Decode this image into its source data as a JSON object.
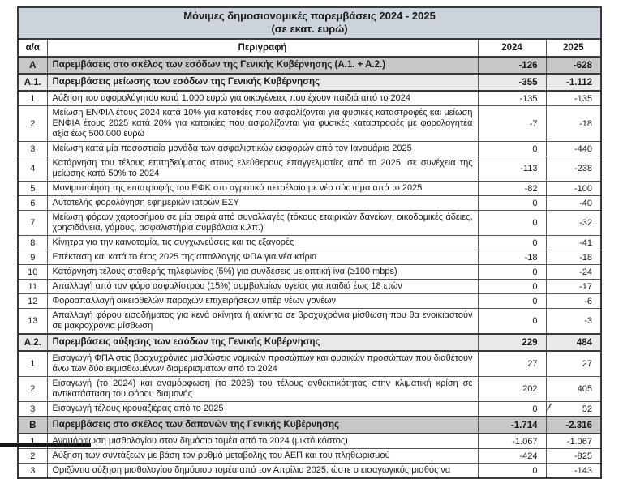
{
  "title": {
    "line1": "Μόνιμες δημοσιονομικές παρεμβάσεις 2024 - 2025",
    "line2": "(σε εκατ. ευρώ)"
  },
  "header": {
    "num": "α/α",
    "desc": "Περιγραφή",
    "col2024": "2024",
    "col2025": "2025"
  },
  "rows": [
    {
      "id": "Α",
      "desc": "Παρεμβάσεις στο σκέλος των εσόδων της Γενικής Κυβέρνησης (Α.1. + Α.2.)",
      "v2024": "-126",
      "v2025": "-628"
    },
    {
      "id": "Α.1.",
      "desc": "Παρεμβάσεις μείωσης των εσόδων της Γενικής Κυβέρνησης",
      "v2024": "-355",
      "v2025": "-1.112"
    },
    {
      "id": "1",
      "desc": "Αύξηση του αφορολόγητου κατά 1.000 ευρώ για οικογένειες που έχουν παιδιά από το 2024",
      "v2024": "-135",
      "v2025": "-135"
    },
    {
      "id": "2",
      "desc": "Μείωση ΕΝΦΙΑ έτους 2024 κατά 10% για κατοικίες που ασφαλίζονται για φυσικές καταστροφές και μείωση ΕΝΦΙΑ έτους 2025 κατά 20% για κατοικίες που ασφαλίζονται για φυσικές καταστροφές με φορολογητέα αξία έως 500.000 ευρώ",
      "v2024": "-7",
      "v2025": "-18"
    },
    {
      "id": "3",
      "desc": "Μείωση κατά μία ποσοστιαία μονάδα των ασφαλιστικών εισφορών από τον Ιανουάριο 2025",
      "v2024": "0",
      "v2025": "-440"
    },
    {
      "id": "4",
      "desc": "Κατάργηση του τέλους επιτηδεύματος στους ελεύθερους επαγγελματίες από το 2025, σε συνέχεια της μείωσης κατά 50% το 2024",
      "v2024": "-113",
      "v2025": "-238"
    },
    {
      "id": "5",
      "desc": "Μονιμοποίηση της επιστροφής του ΕΦΚ στο αγροτικό πετρέλαιο με νέο σύστημα από το 2025",
      "v2024": "-82",
      "v2025": "-100"
    },
    {
      "id": "6",
      "desc": "Αυτοτελής φορολόγηση εφημεριών ιατρών ΕΣΥ",
      "v2024": "0",
      "v2025": "-40"
    },
    {
      "id": "7",
      "desc": "Μείωση φόρων χαρτοσήμου σε μία σειρά από συναλλαγές (τόκους εταιρικών δανείων, οικοδομικές άδειες, χρησιδάνεια, γάμους, ασφαλιστήρια συμβόλαια κ.λπ.)",
      "v2024": "0",
      "v2025": "-32"
    },
    {
      "id": "8",
      "desc": "Κίνητρα για την καινοτομία, τις συγχωνεύσεις και τις εξαγορές",
      "v2024": "0",
      "v2025": "-41"
    },
    {
      "id": "9",
      "desc": "Επέκταση και κατά το έτος 2025 της απαλλαγής ΦΠΑ για νέα κτίρια",
      "v2024": "-18",
      "v2025": "-18"
    },
    {
      "id": "10",
      "desc": "Κατάργηση τέλους σταθερής τηλεφωνίας (5%) για συνδέσεις με οπτική ίνα (≥100 mbps)",
      "v2024": "0",
      "v2025": "-24"
    },
    {
      "id": "11",
      "desc": "Απαλλαγή από τον φόρο ασφαλίστρου (15%) συμβολαίων υγείας για παιδιά έως 18 ετών",
      "v2024": "0",
      "v2025": "-17"
    },
    {
      "id": "12",
      "desc": "Φοροαπαλλαγή οικειοθελών παροχών επιχειρήσεων υπέρ νέων γονέων",
      "v2024": "0",
      "v2025": "-6"
    },
    {
      "id": "13",
      "desc": "Απαλλαγή φόρου εισοδήματος για κενά ακίνητα ή ακίνητα σε βραχυχρόνια μίσθωση που θα ενοικιαστούν σε μακροχρόνια μίσθωση",
      "v2024": "0",
      "v2025": "-3"
    },
    {
      "id": "Α.2.",
      "desc": "Παρεμβάσεις αύξησης των εσόδων της Γενικής Κυβέρνησης",
      "v2024": "229",
      "v2025": "484"
    },
    {
      "id": "1",
      "desc": "Εισαγωγή ΦΠΑ στις βραχυχρόνιες μισθώσεις νομικών προσώπων και φυσικών προσώπων που διαθέτουν άνω των δύο εκμισθωμένων διαμερισμάτων από το 2024",
      "v2024": "27",
      "v2025": "27"
    },
    {
      "id": "2",
      "desc": "Εισαγωγή (το 2024) και αναμόρφωση (το 2025) του τέλους ανθεκτικότητας στην κλιματική κρίση σε αντικατάσταση του φόρου διαμονής",
      "v2024": "202",
      "v2025": "405"
    },
    {
      "id": "3",
      "desc": "Εισαγωγή τέλους κρουαζιέρας από το 2025",
      "v2024": "0",
      "v2025": "52"
    },
    {
      "id": "Β",
      "desc": "Παρεμβάσεις στο σκέλος των δαπανών της Γενικής Κυβέρνησης",
      "v2024": "-1.714",
      "v2025": "-2.316"
    },
    {
      "id": "1",
      "desc": "Αναμόρφωση μισθολογίου στον δημόσιο τομέα από το 2024 (μικτό κόστος)",
      "v2024": "-1.067",
      "v2025": "-1.067"
    },
    {
      "id": "2",
      "desc": "Αύξηση των συντάξεων με βάση τον ρυθμό μεταβολής του ΑΕΠ και του πληθωρισμού",
      "v2024": "-424",
      "v2025": "-825"
    },
    {
      "id": "3",
      "desc": "Οριζόντια αύξηση μισθολογίου δημόσιου τομέα από τον Απρίλιο 2025, ώστε ο εισαγωγικός μισθός να",
      "v2024": "0",
      "v2025": "-143"
    }
  ],
  "artifacts": {
    "slash_mark": "/"
  },
  "colors": {
    "title_band": "#ccd3db",
    "section_bg": "#c7c7c7",
    "subsection_bg": "#e9e9e9"
  }
}
